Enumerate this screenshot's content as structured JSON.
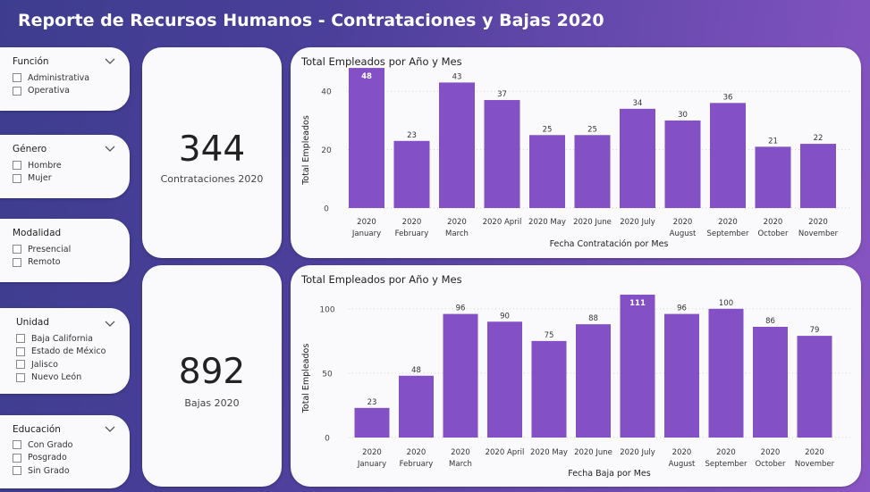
{
  "header": {
    "title": "Reporte de Recursos Humanos - Contrataciones y Bajas 2020"
  },
  "filters": {
    "funcion": {
      "label": "Función",
      "options": [
        "Administrativa",
        "Operativa"
      ]
    },
    "genero": {
      "label": "Género",
      "options": [
        "Hombre",
        "Mujer"
      ]
    },
    "modalidad": {
      "label": "Modalidad",
      "options": [
        "Presencial",
        "Remoto"
      ]
    },
    "unidad": {
      "label": "Unidad",
      "options": [
        "Baja California",
        "Estado de México",
        "Jalisco",
        "Nuevo León"
      ]
    },
    "educacion": {
      "label": "Educación",
      "options": [
        "Con Grado",
        "Posgrado",
        "Sin Grado"
      ]
    }
  },
  "kpis": {
    "contrataciones": {
      "value": "344",
      "label": "Contrataciones 2020"
    },
    "bajas": {
      "value": "892",
      "label": "Bajas 2020"
    }
  },
  "colors": {
    "bar": "#8350c6",
    "accent": "#6b4bb0"
  },
  "chart_data": [
    {
      "type": "bar",
      "title": "Total Empleados por Año y Mes",
      "xlabel": "Fecha Contratación por Mes",
      "ylabel": "Total Empleados",
      "ylim": [
        0,
        52
      ],
      "yticks": [
        0,
        20,
        40
      ],
      "categories": [
        [
          "2020",
          "January"
        ],
        [
          "2020",
          "February"
        ],
        [
          "2020",
          "March"
        ],
        [
          "2020 April",
          ""
        ],
        [
          "2020 May",
          ""
        ],
        [
          "2020 June",
          ""
        ],
        [
          "2020 July",
          ""
        ],
        [
          "2020",
          "August"
        ],
        [
          "2020",
          "September"
        ],
        [
          "2020",
          "October"
        ],
        [
          "2020",
          "November"
        ]
      ],
      "values": [
        48,
        23,
        43,
        37,
        25,
        25,
        34,
        30,
        36,
        21,
        22
      ],
      "label_inside": [
        0
      ]
    },
    {
      "type": "bar",
      "title": "Total Empleados por Año y Mes",
      "xlabel": "Fecha Baja por Mes",
      "ylabel": "Total Empleados",
      "ylim": [
        0,
        120
      ],
      "yticks": [
        0,
        50,
        100
      ],
      "categories": [
        [
          "2020",
          "January"
        ],
        [
          "2020",
          "February"
        ],
        [
          "2020",
          "March"
        ],
        [
          "2020 April",
          ""
        ],
        [
          "2020 May",
          ""
        ],
        [
          "2020 June",
          ""
        ],
        [
          "2020 July",
          ""
        ],
        [
          "2020",
          "August"
        ],
        [
          "2020",
          "September"
        ],
        [
          "2020",
          "October"
        ],
        [
          "2020",
          "November"
        ]
      ],
      "values": [
        23,
        48,
        96,
        90,
        75,
        88,
        111,
        96,
        100,
        86,
        79
      ],
      "label_inside": [
        6
      ]
    }
  ]
}
